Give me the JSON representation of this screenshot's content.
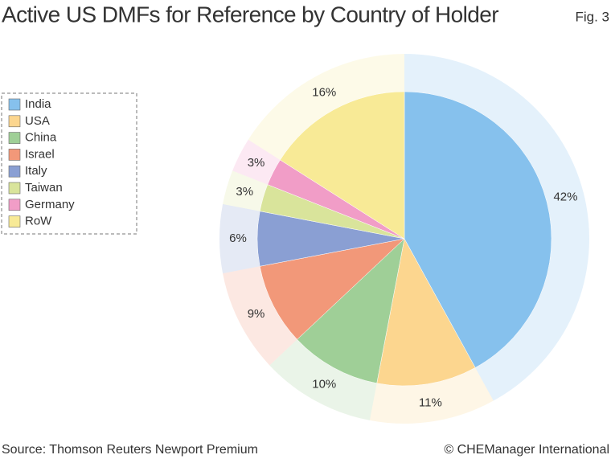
{
  "chart_data": {
    "type": "pie",
    "title": "Active US DMFs for Reference by Country of Holder",
    "figure_label": "Fig. 3",
    "source": "Source: Thomson Reuters Newport Premium",
    "credit": "© CHEManager International",
    "categories": [
      "India",
      "USA",
      "China",
      "Israel",
      "Italy",
      "Taiwan",
      "Germany",
      "RoW"
    ],
    "values": [
      42,
      11,
      10,
      9,
      6,
      3,
      3,
      16
    ],
    "value_labels": [
      "42%",
      "11%",
      "10%",
      "9%",
      "6%",
      "3%",
      "3%",
      "16%"
    ],
    "colors": [
      "#86c1ed",
      "#fcd68f",
      "#9fcf97",
      "#f29879",
      "#8a9fd3",
      "#d9e49b",
      "#f19dc7",
      "#f8ea96"
    ],
    "legend": "left"
  }
}
